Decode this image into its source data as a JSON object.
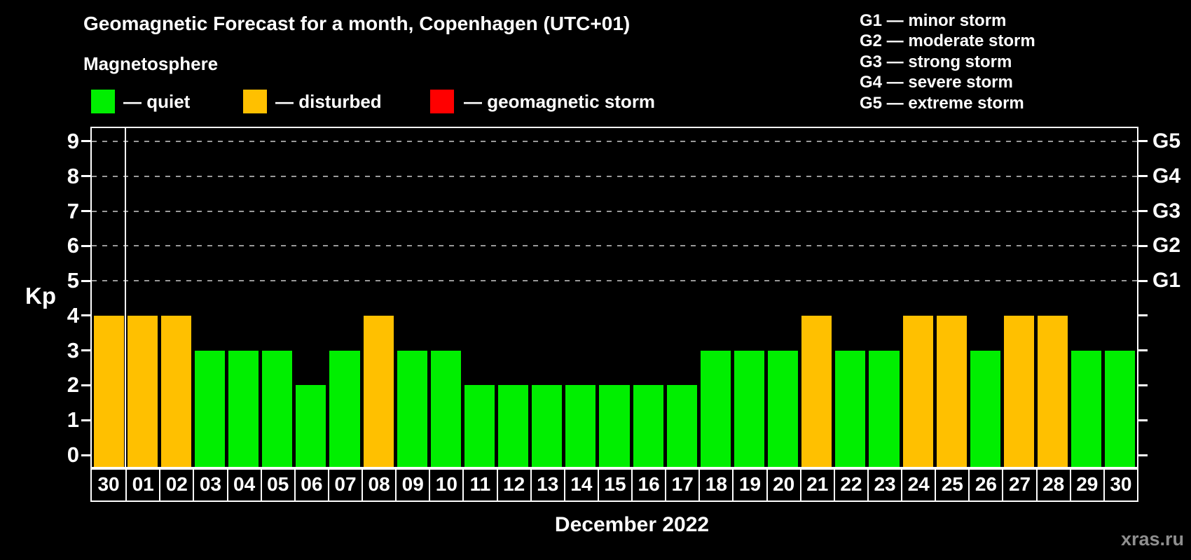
{
  "legend": {
    "title": "Magnetosphere",
    "items": [
      {
        "id": "quiet",
        "label": "— quiet"
      },
      {
        "id": "disturbed",
        "label": "— disturbed"
      },
      {
        "id": "storm",
        "label": "— geomagnetic storm"
      }
    ]
  },
  "storm_scale": [
    "G1 — minor storm",
    "G2 — moderate storm",
    "G3 — strong storm",
    "G4 — severe storm",
    "G5 — extreme storm"
  ],
  "colors": {
    "quiet": "#00ef00",
    "disturbed": "#ffc000",
    "storm": "#ff0000",
    "axis": "#ffffff",
    "gridline": "#9a9a9a",
    "watermark_gray": "#8f8f8f",
    "background": "#000000"
  },
  "watermark": "xras.ru",
  "chart_data": {
    "type": "bar",
    "title": "Geomagnetic Forecast for a month, Copenhagen (UTC+01)",
    "xlabel": "December 2022",
    "ylabel": "Kp",
    "ylim": [
      0,
      9
    ],
    "yticks": [
      0,
      1,
      2,
      3,
      4,
      5,
      6,
      7,
      8,
      9
    ],
    "gridlines_at": [
      5,
      6,
      7,
      8,
      9
    ],
    "right_axis_labels": [
      {
        "kp": 5,
        "label": "G1"
      },
      {
        "kp": 6,
        "label": "G2"
      },
      {
        "kp": 7,
        "label": "G3"
      },
      {
        "kp": 8,
        "label": "G4"
      },
      {
        "kp": 9,
        "label": "G5"
      }
    ],
    "categories": [
      "30",
      "01",
      "02",
      "03",
      "04",
      "05",
      "06",
      "07",
      "08",
      "09",
      "10",
      "11",
      "12",
      "13",
      "14",
      "15",
      "16",
      "17",
      "18",
      "19",
      "20",
      "21",
      "22",
      "23",
      "24",
      "25",
      "26",
      "27",
      "28",
      "29",
      "30"
    ],
    "values": [
      4,
      4,
      4,
      3,
      3,
      3,
      2,
      3,
      4,
      3,
      3,
      2,
      2,
      2,
      2,
      2,
      2,
      2,
      3,
      3,
      3,
      4,
      3,
      3,
      4,
      4,
      3,
      4,
      4,
      3,
      3
    ],
    "bar_states": [
      "disturbed",
      "disturbed",
      "disturbed",
      "quiet",
      "quiet",
      "quiet",
      "quiet",
      "quiet",
      "disturbed",
      "quiet",
      "quiet",
      "quiet",
      "quiet",
      "quiet",
      "quiet",
      "quiet",
      "quiet",
      "quiet",
      "quiet",
      "quiet",
      "quiet",
      "disturbed",
      "quiet",
      "quiet",
      "disturbed",
      "disturbed",
      "quiet",
      "disturbed",
      "disturbed",
      "quiet",
      "quiet"
    ],
    "month_separator_after_index": 0,
    "legend_position": "top-left",
    "grid": "dashed horizontal at Kp 5-9 only"
  }
}
